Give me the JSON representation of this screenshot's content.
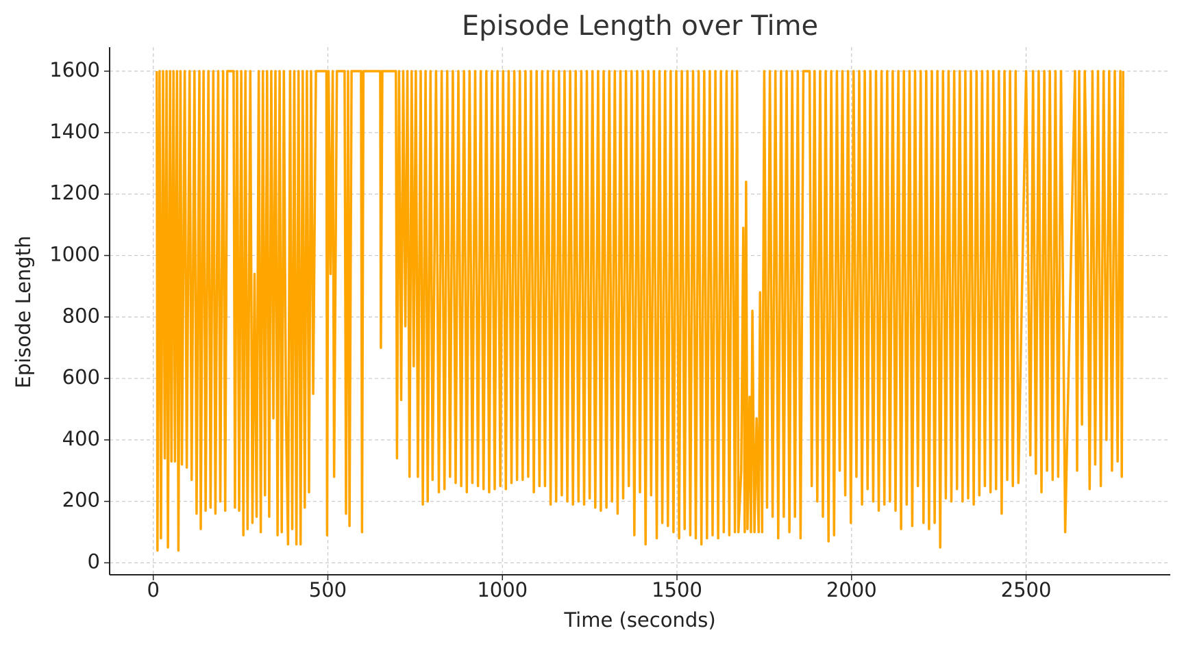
{
  "chart_data": {
    "type": "line",
    "title": "Episode Length over Time",
    "x_label": "Time (seconds)",
    "y_label": "Episode Length",
    "color": "#ffa500",
    "grid": true,
    "xlim": [
      -125,
      2913
    ],
    "ylim": [
      -39,
      1678
    ],
    "xticks": [
      0,
      500,
      1000,
      1500,
      2000,
      2500
    ],
    "yticks": [
      0,
      200,
      400,
      600,
      800,
      1000,
      1200,
      1400,
      1600
    ],
    "x": [
      10,
      12,
      18,
      22,
      28,
      33,
      38,
      42,
      48,
      52,
      58,
      62,
      68,
      72,
      78,
      82,
      90,
      96,
      104,
      110,
      118,
      124,
      132,
      136,
      144,
      150,
      158,
      164,
      172,
      178,
      186,
      192,
      200,
      206,
      212,
      230,
      234,
      240,
      246,
      252,
      258,
      264,
      270,
      278,
      284,
      290,
      296,
      302,
      308,
      314,
      320,
      326,
      332,
      338,
      344,
      350,
      356,
      362,
      368,
      374,
      380,
      386,
      392,
      398,
      404,
      410,
      416,
      422,
      428,
      434,
      440,
      446,
      452,
      458,
      466,
      496,
      498,
      502,
      508,
      514,
      518,
      526,
      548,
      552,
      558,
      562,
      568,
      595,
      598,
      602,
      650,
      652,
      656,
      695,
      698,
      704,
      710,
      716,
      722,
      728,
      734,
      740,
      746,
      752,
      758,
      766,
      772,
      780,
      786,
      794,
      800,
      810,
      818,
      826,
      834,
      842,
      850,
      858,
      866,
      874,
      882,
      890,
      898,
      906,
      914,
      922,
      930,
      938,
      946,
      954,
      962,
      970,
      978,
      986,
      994,
      1002,
      1010,
      1018,
      1026,
      1034,
      1042,
      1050,
      1058,
      1066,
      1074,
      1082,
      1090,
      1098,
      1106,
      1114,
      1122,
      1130,
      1138,
      1146,
      1154,
      1162,
      1170,
      1178,
      1186,
      1194,
      1202,
      1210,
      1218,
      1226,
      1234,
      1242,
      1250,
      1258,
      1266,
      1274,
      1282,
      1290,
      1298,
      1306,
      1314,
      1322,
      1330,
      1338,
      1346,
      1354,
      1362,
      1370,
      1378,
      1386,
      1394,
      1402,
      1410,
      1418,
      1426,
      1434,
      1442,
      1450,
      1458,
      1466,
      1474,
      1482,
      1490,
      1498,
      1506,
      1514,
      1522,
      1530,
      1538,
      1546,
      1554,
      1562,
      1570,
      1578,
      1586,
      1594,
      1602,
      1610,
      1618,
      1626,
      1634,
      1642,
      1650,
      1658,
      1666,
      1672,
      1676,
      1684,
      1690,
      1694,
      1698,
      1702,
      1708,
      1712,
      1716,
      1722,
      1728,
      1734,
      1738,
      1744,
      1750,
      1758,
      1766,
      1774,
      1782,
      1790,
      1798,
      1806,
      1814,
      1822,
      1830,
      1838,
      1846,
      1854,
      1862,
      1880,
      1886,
      1894,
      1902,
      1910,
      1918,
      1926,
      1934,
      1942,
      1950,
      1958,
      1966,
      1974,
      1982,
      1990,
      1998,
      2006,
      2014,
      2022,
      2030,
      2038,
      2046,
      2054,
      2062,
      2070,
      2078,
      2086,
      2094,
      2102,
      2110,
      2118,
      2126,
      2134,
      2142,
      2150,
      2158,
      2166,
      2174,
      2182,
      2190,
      2198,
      2206,
      2214,
      2222,
      2230,
      2238,
      2246,
      2254,
      2262,
      2270,
      2278,
      2286,
      2294,
      2302,
      2310,
      2318,
      2326,
      2334,
      2342,
      2350,
      2358,
      2366,
      2374,
      2382,
      2390,
      2398,
      2406,
      2414,
      2422,
      2430,
      2438,
      2446,
      2454,
      2462,
      2470,
      2478,
      2500,
      2512,
      2520,
      2528,
      2536,
      2544,
      2552,
      2560,
      2568,
      2576,
      2584,
      2592,
      2600,
      2612,
      2640,
      2646,
      2652,
      2660,
      2668,
      2676,
      2682,
      2690,
      2698,
      2706,
      2714,
      2722,
      2730,
      2738,
      2746,
      2754,
      2762,
      2770,
      2774,
      2778
    ],
    "values": [
      1600,
      40,
      1600,
      80,
      1600,
      340,
      1600,
      50,
      1600,
      330,
      1600,
      330,
      1600,
      40,
      1600,
      320,
      1600,
      310,
      1600,
      270,
      1600,
      160,
      1600,
      110,
      1600,
      170,
      1600,
      180,
      1600,
      160,
      1600,
      200,
      1600,
      170,
      1600,
      1600,
      180,
      1600,
      170,
      1600,
      90,
      1600,
      110,
      1600,
      130,
      940,
      150,
      1600,
      100,
      1600,
      220,
      1600,
      150,
      1600,
      470,
      1600,
      90,
      1600,
      100,
      1600,
      500,
      60,
      1600,
      110,
      1600,
      60,
      1600,
      60,
      1600,
      180,
      1600,
      230,
      1600,
      550,
      1600,
      1600,
      90,
      1600,
      940,
      1600,
      280,
      1600,
      1600,
      160,
      1600,
      120,
      1600,
      1600,
      100,
      1600,
      1600,
      700,
      1600,
      1600,
      340,
      1600,
      530,
      1600,
      770,
      1600,
      280,
      1600,
      640,
      1600,
      280,
      1600,
      190,
      1600,
      200,
      1600,
      270,
      1600,
      230,
      1600,
      240,
      1600,
      280,
      1600,
      260,
      1600,
      250,
      1600,
      230,
      1600,
      260,
      1600,
      250,
      1600,
      240,
      1600,
      230,
      1600,
      240,
      1600,
      250,
      1600,
      240,
      1600,
      260,
      1600,
      270,
      1600,
      270,
      1600,
      280,
      1600,
      230,
      1600,
      250,
      1600,
      250,
      1600,
      190,
      1600,
      200,
      1600,
      220,
      1600,
      200,
      1600,
      190,
      1600,
      200,
      1600,
      190,
      1600,
      210,
      1600,
      180,
      1600,
      170,
      1600,
      180,
      1600,
      200,
      1600,
      160,
      1600,
      210,
      1600,
      250,
      1600,
      90,
      1600,
      230,
      1600,
      60,
      1600,
      220,
      1600,
      80,
      1600,
      130,
      1600,
      120,
      1600,
      100,
      1600,
      80,
      1600,
      110,
      1600,
      90,
      1600,
      80,
      1600,
      60,
      1600,
      80,
      1600,
      90,
      1600,
      80,
      1600,
      100,
      1600,
      90,
      1600,
      100,
      1600,
      100,
      300,
      1090,
      100,
      1240,
      110,
      540,
      100,
      820,
      100,
      470,
      100,
      880,
      100,
      1600,
      180,
      1600,
      150,
      1600,
      80,
      1600,
      150,
      1600,
      100,
      1600,
      150,
      1600,
      80,
      1600,
      1600,
      250,
      1600,
      200,
      1600,
      150,
      1600,
      70,
      1600,
      90,
      1600,
      300,
      1600,
      220,
      1600,
      130,
      1600,
      280,
      1600,
      190,
      1600,
      240,
      1600,
      200,
      1600,
      170,
      1600,
      190,
      1600,
      200,
      1600,
      170,
      1600,
      110,
      1600,
      190,
      1600,
      120,
      1600,
      250,
      1600,
      130,
      1600,
      110,
      1600,
      130,
      1600,
      50,
      1600,
      210,
      1600,
      200,
      1600,
      240,
      1600,
      200,
      1600,
      210,
      1600,
      190,
      1600,
      220,
      1600,
      250,
      1600,
      230,
      1600,
      240,
      1600,
      160,
      1600,
      270,
      1600,
      250,
      1600,
      260,
      1600,
      350,
      1600,
      290,
      1600,
      230,
      1600,
      300,
      1600,
      270,
      1600,
      280,
      1600,
      100,
      1600,
      300,
      1600,
      450,
      1600,
      1050,
      240,
      1600,
      320,
      1600,
      250,
      1600,
      400,
      1600,
      300,
      1600,
      330,
      1600,
      280,
      1600
    ]
  }
}
